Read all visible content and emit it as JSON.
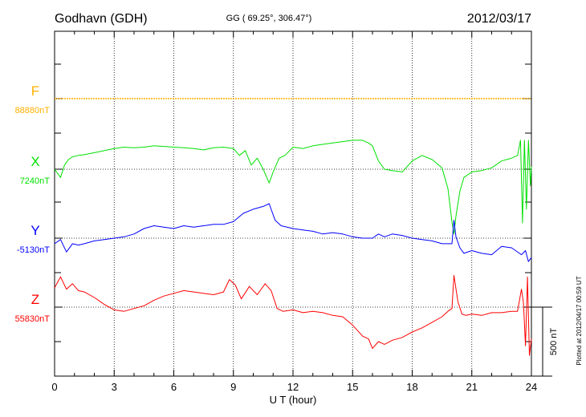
{
  "header": {
    "station": "Godhavn (GDH)",
    "coords": "GG ( 69.25°, 306.47°)",
    "date": "2012/03/17"
  },
  "plotted_note": "Plotted at 2012/04/17 00:59 UT",
  "chart_data": {
    "type": "line",
    "xlabel": "U T (hour)",
    "xlim": [
      0,
      24
    ],
    "xticks": [
      0,
      3,
      6,
      9,
      12,
      15,
      18,
      21,
      24
    ],
    "scale_bar": {
      "label": "500 nT",
      "value_nT": 500
    },
    "grid": true,
    "series": [
      {
        "name": "F",
        "baseline_label": "88880nT",
        "baseline_nT": 88880,
        "color": "#ffb000",
        "x": [
          0,
          24
        ],
        "y": [
          88880,
          88880
        ]
      },
      {
        "name": "X",
        "baseline_label": "7240nT",
        "baseline_nT": 7240,
        "color": "#00e000",
        "x": [
          0,
          0.3,
          0.5,
          0.7,
          0.9,
          1.2,
          1.5,
          2,
          2.5,
          3,
          3.5,
          4,
          4.5,
          5,
          5.5,
          6,
          6.5,
          7,
          7.5,
          8,
          8.5,
          9,
          9.3,
          9.6,
          9.9,
          10.2,
          10.5,
          10.8,
          11,
          11.3,
          11.6,
          12,
          12.5,
          13,
          13.5,
          14,
          14.5,
          15,
          15.5,
          15.8,
          16,
          16.3,
          16.6,
          17,
          17.5,
          18,
          18.5,
          19,
          19.5,
          19.8,
          20,
          20.1,
          20.2,
          20.4,
          20.6,
          21,
          21.5,
          22,
          22.5,
          23,
          23.3,
          23.45,
          23.55,
          23.65,
          23.75,
          23.85,
          23.95,
          24
        ],
        "y": [
          7240,
          7180,
          7270,
          7310,
          7330,
          7340,
          7345,
          7360,
          7375,
          7390,
          7400,
          7395,
          7400,
          7410,
          7405,
          7400,
          7395,
          7390,
          7380,
          7395,
          7400,
          7390,
          7340,
          7375,
          7270,
          7320,
          7240,
          7140,
          7220,
          7320,
          7340,
          7400,
          7390,
          7410,
          7420,
          7430,
          7440,
          7450,
          7450,
          7430,
          7410,
          7300,
          7240,
          7230,
          7220,
          7300,
          7340,
          7310,
          7250,
          7100,
          6860,
          6770,
          6900,
          7080,
          7180,
          7220,
          7230,
          7250,
          7300,
          7320,
          7340,
          7450,
          6850,
          7450,
          6950,
          7450,
          7120,
          7260
        ]
      },
      {
        "name": "Y",
        "baseline_label": "-5130nT",
        "baseline_nT": -5130,
        "color": "#0000ff",
        "x": [
          0,
          0.3,
          0.6,
          0.9,
          1.2,
          1.5,
          2,
          2.5,
          3,
          3.5,
          4,
          4.5,
          5,
          5.5,
          6,
          6.5,
          7,
          7.5,
          8,
          8.5,
          9,
          9.5,
          10,
          10.5,
          10.8,
          11.1,
          11.4,
          12,
          12.5,
          13,
          13.5,
          14,
          14.5,
          15,
          15.5,
          16,
          16.3,
          16.6,
          17,
          17.5,
          18,
          18.5,
          19,
          19.5,
          20,
          20.1,
          20.2,
          20.4,
          20.6,
          21,
          21.5,
          22,
          22.5,
          23,
          23.5,
          23.7,
          23.85,
          24
        ],
        "y": [
          -5170,
          -5140,
          -5230,
          -5170,
          -5180,
          -5170,
          -5150,
          -5140,
          -5130,
          -5120,
          -5100,
          -5060,
          -5040,
          -5050,
          -5060,
          -5040,
          -5050,
          -5040,
          -5030,
          -5030,
          -5010,
          -4950,
          -4920,
          -4900,
          -4880,
          -5000,
          -5040,
          -5060,
          -5070,
          -5080,
          -5100,
          -5090,
          -5100,
          -5120,
          -5130,
          -5130,
          -5100,
          -5120,
          -5100,
          -5110,
          -5130,
          -5140,
          -5150,
          -5170,
          -5170,
          -5000,
          -5120,
          -5200,
          -5240,
          -5220,
          -5240,
          -5250,
          -5190,
          -5200,
          -5250,
          -5220,
          -5300,
          -5270
        ]
      },
      {
        "name": "Z",
        "baseline_label": "55830nT",
        "baseline_nT": 55830,
        "color": "#ff0000",
        "x": [
          0,
          0.3,
          0.6,
          0.9,
          1.2,
          1.5,
          2,
          2.5,
          3,
          3.5,
          4,
          4.5,
          5,
          5.5,
          6,
          6.5,
          7,
          7.5,
          8,
          8.5,
          8.8,
          9.1,
          9.4,
          9.8,
          10.2,
          10.6,
          10.9,
          11.2,
          11.5,
          12,
          12.5,
          13,
          13.5,
          14,
          14.5,
          15,
          15.5,
          15.8,
          16,
          16.3,
          16.6,
          17,
          17.5,
          18,
          18.5,
          19,
          19.5,
          19.8,
          20,
          20.1,
          20.3,
          20.5,
          20.7,
          21,
          21.5,
          22,
          22.5,
          23,
          23.3,
          23.5,
          23.6,
          23.7,
          23.8,
          23.9,
          24
        ],
        "y": [
          55970,
          56050,
          55960,
          56000,
          55950,
          55940,
          55900,
          55850,
          55810,
          55800,
          55820,
          55840,
          55880,
          55910,
          55930,
          55950,
          55940,
          55930,
          55920,
          55940,
          56030,
          55990,
          55890,
          55980,
          55920,
          56000,
          55950,
          55820,
          55800,
          55810,
          55790,
          55800,
          55790,
          55770,
          55760,
          55700,
          55620,
          55600,
          55530,
          55580,
          55560,
          55590,
          55610,
          55650,
          55680,
          55720,
          55760,
          55800,
          55820,
          56060,
          55870,
          55780,
          55770,
          55780,
          55770,
          55790,
          55790,
          55800,
          55800,
          55960,
          55860,
          55550,
          56050,
          55480,
          55600
        ]
      }
    ]
  }
}
